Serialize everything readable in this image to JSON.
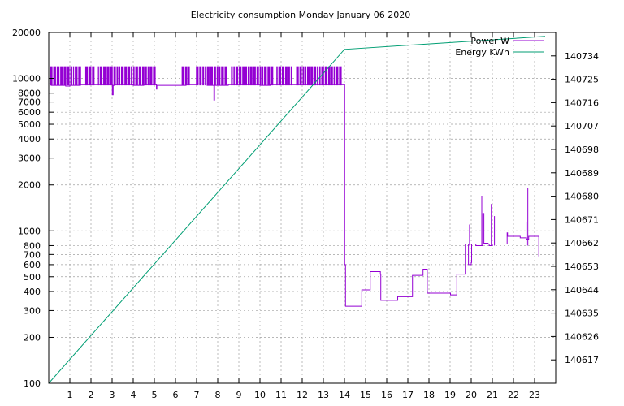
{
  "chart_data": {
    "type": "line",
    "title": "Electricity consumption Monday January 06 2020",
    "y_scale": "log",
    "ylim": [
      100,
      20000
    ],
    "y_ticks": [
      100,
      200,
      300,
      400,
      500,
      600,
      700,
      800,
      1000,
      2000,
      3000,
      4000,
      5000,
      6000,
      7000,
      8000,
      10000,
      20000
    ],
    "xlim": [
      0,
      24
    ],
    "x_ticks": [
      1,
      2,
      3,
      4,
      5,
      6,
      7,
      8,
      9,
      10,
      11,
      12,
      13,
      14,
      15,
      16,
      17,
      18,
      19,
      20,
      21,
      22,
      23
    ],
    "y2lim": [
      140608,
      140743
    ],
    "y2_ticks": [
      140617,
      140626,
      140635,
      140644,
      140653,
      140662,
      140671,
      140680,
      140689,
      140698,
      140707,
      140716,
      140725,
      140734
    ],
    "grid": true,
    "legend_position": "top-right",
    "series": [
      {
        "name": "Power W",
        "axis": "y1",
        "color": "#9400d3",
        "note_cycling_high": 12000,
        "x": [
          0.0,
          0.1,
          0.12,
          0.5,
          0.8,
          1.0,
          1.5,
          2.0,
          2.8,
          3.0,
          3.01,
          3.05,
          3.1,
          3.5,
          4.0,
          4.5,
          5.0,
          5.1,
          5.12,
          5.5,
          6.0,
          6.5,
          7.0,
          7.5,
          7.8,
          7.82,
          7.85,
          8.5,
          9.0,
          9.5,
          10.0,
          10.5,
          11.0,
          11.5,
          12.0,
          12.5,
          13.0,
          13.5,
          13.9,
          14.0,
          14.01,
          14.05,
          14.1,
          14.8,
          14.82,
          15.2,
          15.22,
          15.7,
          15.72,
          16.5,
          16.52,
          17.2,
          17.22,
          17.7,
          17.72,
          17.9,
          17.92,
          19.0,
          19.02,
          19.3,
          19.32,
          19.7,
          19.72,
          19.85,
          19.87,
          20.0,
          20.02,
          20.2,
          20.22,
          20.5,
          20.55,
          20.6,
          20.8,
          20.85,
          21.0,
          21.4,
          21.42,
          21.7,
          21.72,
          22.3,
          22.32,
          22.6,
          22.62,
          22.7,
          22.72,
          23.1,
          23.12,
          23.2
        ],
        "values": [
          9200,
          9200,
          9000,
          9000,
          8900,
          9000,
          9100,
          9100,
          9100,
          9100,
          7800,
          9000,
          9100,
          9100,
          9000,
          9100,
          9100,
          8500,
          9000,
          9000,
          9000,
          9100,
          9200,
          9000,
          9000,
          7200,
          9000,
          9100,
          9100,
          9100,
          9000,
          9100,
          9100,
          9100,
          9100,
          9100,
          9100,
          9100,
          9100,
          9100,
          600,
          320,
          320,
          320,
          410,
          410,
          540,
          520,
          350,
          350,
          370,
          370,
          510,
          510,
          560,
          560,
          390,
          390,
          380,
          380,
          520,
          520,
          820,
          820,
          600,
          620,
          820,
          820,
          800,
          800,
          1300,
          830,
          820,
          800,
          820,
          820,
          820,
          970,
          920,
          920,
          900,
          900,
          880,
          880,
          920,
          920,
          920,
          680
        ]
      },
      {
        "name": "Energy KWh",
        "axis": "y2",
        "color": "#009e73",
        "x": [
          0,
          14.0,
          23.5
        ],
        "values": [
          140608,
          140736.5,
          140741.5
        ]
      }
    ]
  }
}
